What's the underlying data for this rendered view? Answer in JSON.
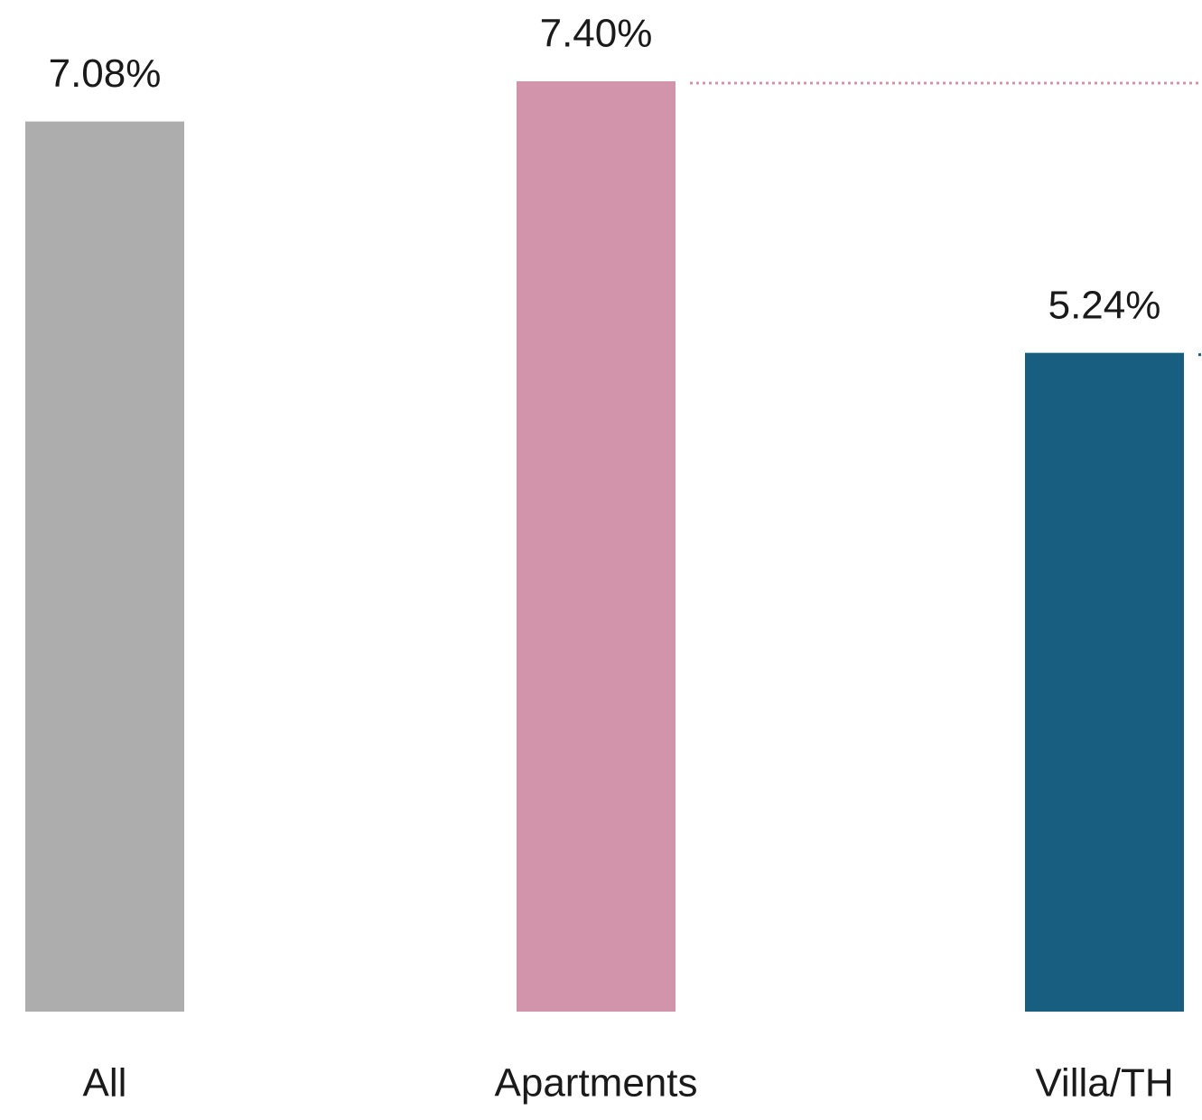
{
  "chart_data": {
    "type": "bar",
    "categories": [
      "All",
      "Apartments",
      "Villa/TH"
    ],
    "values": [
      7.08,
      7.4,
      5.24
    ],
    "value_labels": [
      "7.08%",
      "7.40%",
      "5.24%"
    ],
    "colors": [
      "#adadad",
      "#d294aa",
      "#175e80"
    ]
  }
}
